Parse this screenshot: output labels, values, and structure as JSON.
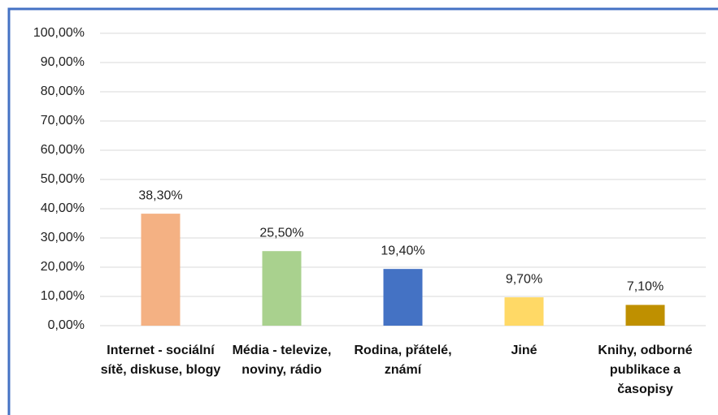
{
  "chart_data": {
    "type": "bar",
    "categories": [
      "Internet - sociální sítě, diskuse, blogy",
      "Média - televize, noviny, rádio",
      "Rodina, přátelé, známí",
      "Jiné",
      "Knihy, odborné publikace a časopisy"
    ],
    "values": [
      38.3,
      25.5,
      19.4,
      9.7,
      7.1
    ],
    "value_labels": [
      "38,30%",
      "25,50%",
      "19,40%",
      "9,70%",
      "7,10%"
    ],
    "colors": [
      "#f4b183",
      "#a9d18e",
      "#4472c4",
      "#ffd966",
      "#bf9000"
    ],
    "ylim": [
      0,
      100
    ],
    "yticks": [
      {
        "value": 0,
        "label": "0,00%"
      },
      {
        "value": 10,
        "label": "10,00%"
      },
      {
        "value": 20,
        "label": "20,00%"
      },
      {
        "value": 30,
        "label": "30,00%"
      },
      {
        "value": 40,
        "label": "40,00%"
      },
      {
        "value": 50,
        "label": "50,00%"
      },
      {
        "value": 60,
        "label": "60,00%"
      },
      {
        "value": 70,
        "label": "70,00%"
      },
      {
        "value": 80,
        "label": "80,00%"
      },
      {
        "value": 90,
        "label": "90,00%"
      },
      {
        "value": 100,
        "label": "100,00%"
      }
    ],
    "grid": true
  }
}
